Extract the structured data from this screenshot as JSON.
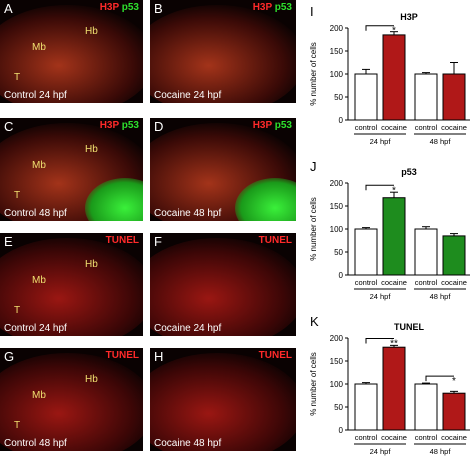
{
  "panels": [
    {
      "letter": "A",
      "stain_red": "H3P",
      "stain_green": "p53",
      "caption": "Control 24 hpf",
      "anat": [
        "Mb",
        "Hb",
        "T"
      ]
    },
    {
      "letter": "B",
      "stain_red": "H3P",
      "stain_green": "p53",
      "caption": "Cocaine 24 hpf",
      "anat": []
    },
    {
      "letter": "C",
      "stain_red": "H3P",
      "stain_green": "p53",
      "caption": "Control 48 hpf",
      "anat": [
        "Mb",
        "Hb",
        "T"
      ]
    },
    {
      "letter": "D",
      "stain_red": "H3P",
      "stain_green": "p53",
      "caption": "Cocaine 48 hpf",
      "anat": []
    },
    {
      "letter": "E",
      "stain_red": "TUNEL",
      "stain_green": "",
      "caption": "Control 24 hpf",
      "anat": [
        "Mb",
        "Hb",
        "T"
      ]
    },
    {
      "letter": "F",
      "stain_red": "TUNEL",
      "stain_green": "",
      "caption": "Cocaine 24 hpf",
      "anat": []
    },
    {
      "letter": "G",
      "stain_red": "TUNEL",
      "stain_green": "",
      "caption": "Control 48 hpf",
      "anat": [
        "Mb",
        "Hb",
        "T"
      ]
    },
    {
      "letter": "H",
      "stain_red": "TUNEL",
      "stain_green": "",
      "caption": "Cocaine 48 hpf",
      "anat": []
    }
  ],
  "chart_data": [
    {
      "type": "bar",
      "panel_letter": "I",
      "title": "H3P",
      "ylabel": "% number of cells",
      "ylim": [
        0,
        200
      ],
      "yticks": [
        0,
        50,
        100,
        150,
        200
      ],
      "categories": [
        "control",
        "cocaine",
        "control",
        "cocaine"
      ],
      "groups": [
        "24 hpf",
        "48 hpf"
      ],
      "values": [
        100,
        185,
        100,
        100
      ],
      "errors": [
        10,
        7,
        3,
        25
      ],
      "colors": [
        "#ffffff",
        "#b01818",
        "#ffffff",
        "#b01818"
      ],
      "significance": [
        {
          "label": "*",
          "group": "24 hpf"
        }
      ]
    },
    {
      "type": "bar",
      "panel_letter": "J",
      "title": "p53",
      "ylabel": "% number of cells",
      "ylim": [
        0,
        200
      ],
      "yticks": [
        0,
        50,
        100,
        150,
        200
      ],
      "categories": [
        "control",
        "cocaine",
        "control",
        "cocaine"
      ],
      "groups": [
        "24 hpf",
        "48 hpf"
      ],
      "values": [
        100,
        168,
        100,
        85
      ],
      "errors": [
        3,
        12,
        5,
        5
      ],
      "colors": [
        "#ffffff",
        "#1e8c1e",
        "#ffffff",
        "#1e8c1e"
      ],
      "significance": [
        {
          "label": "*",
          "group": "24 hpf"
        }
      ]
    },
    {
      "type": "bar",
      "panel_letter": "K",
      "title": "TUNEL",
      "ylabel": "% number of cells",
      "ylim": [
        0,
        200
      ],
      "yticks": [
        0,
        50,
        100,
        150,
        200
      ],
      "categories": [
        "control",
        "cocaine",
        "control",
        "cocaine"
      ],
      "groups": [
        "24 hpf",
        "48 hpf"
      ],
      "values": [
        100,
        180,
        100,
        80
      ],
      "errors": [
        3,
        4,
        2,
        4
      ],
      "colors": [
        "#ffffff",
        "#b01818",
        "#ffffff",
        "#b01818"
      ],
      "significance": [
        {
          "label": "**",
          "group": "24 hpf"
        },
        {
          "label": "*",
          "group": "48 hpf"
        }
      ]
    }
  ]
}
